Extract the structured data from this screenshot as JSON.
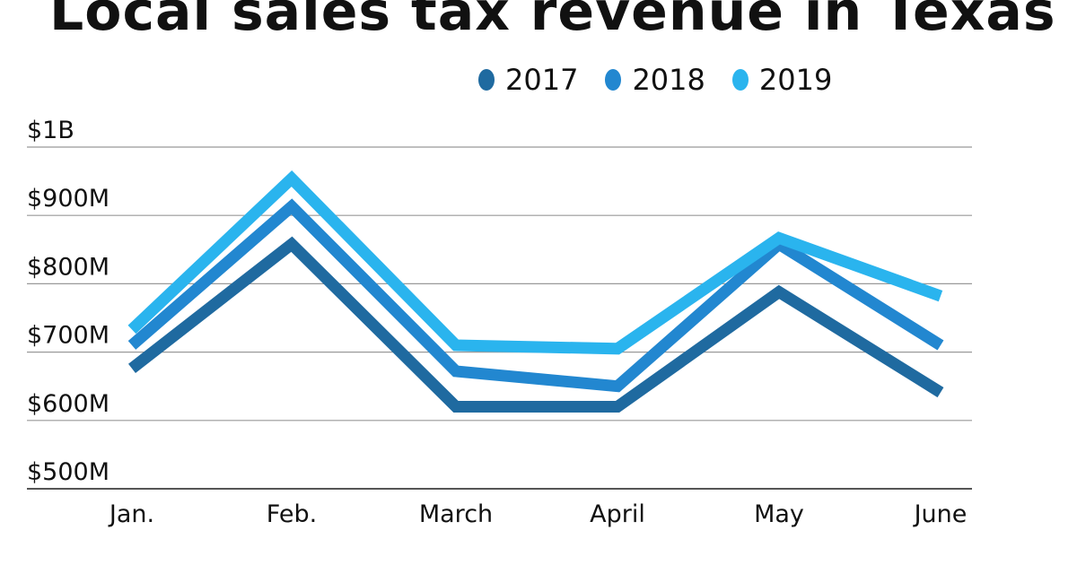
{
  "chart_data": {
    "type": "line",
    "title": "Local sales tax revenue in Texas",
    "categories": [
      "Jan.",
      "Feb.",
      "March",
      "April",
      "May",
      "June"
    ],
    "y_unit": "USD millions",
    "ylim": [
      500,
      1000
    ],
    "y_ticks": [
      500,
      600,
      700,
      800,
      900,
      1000
    ],
    "y_tick_labels": [
      "$500M",
      "$600M",
      "$700M",
      "$800M",
      "$900M",
      "$1B"
    ],
    "grid": true,
    "legend_position": "top-right",
    "series": [
      {
        "name": "2017",
        "color": "#1f6aa0",
        "values": [
          676,
          858,
          620,
          620,
          788,
          641
        ]
      },
      {
        "name": "2018",
        "color": "#2287d0",
        "values": [
          710,
          913,
          672,
          650,
          858,
          710
        ]
      },
      {
        "name": "2019",
        "color": "#2ab4ee",
        "values": [
          733,
          954,
          710,
          705,
          867,
          782
        ]
      }
    ]
  }
}
